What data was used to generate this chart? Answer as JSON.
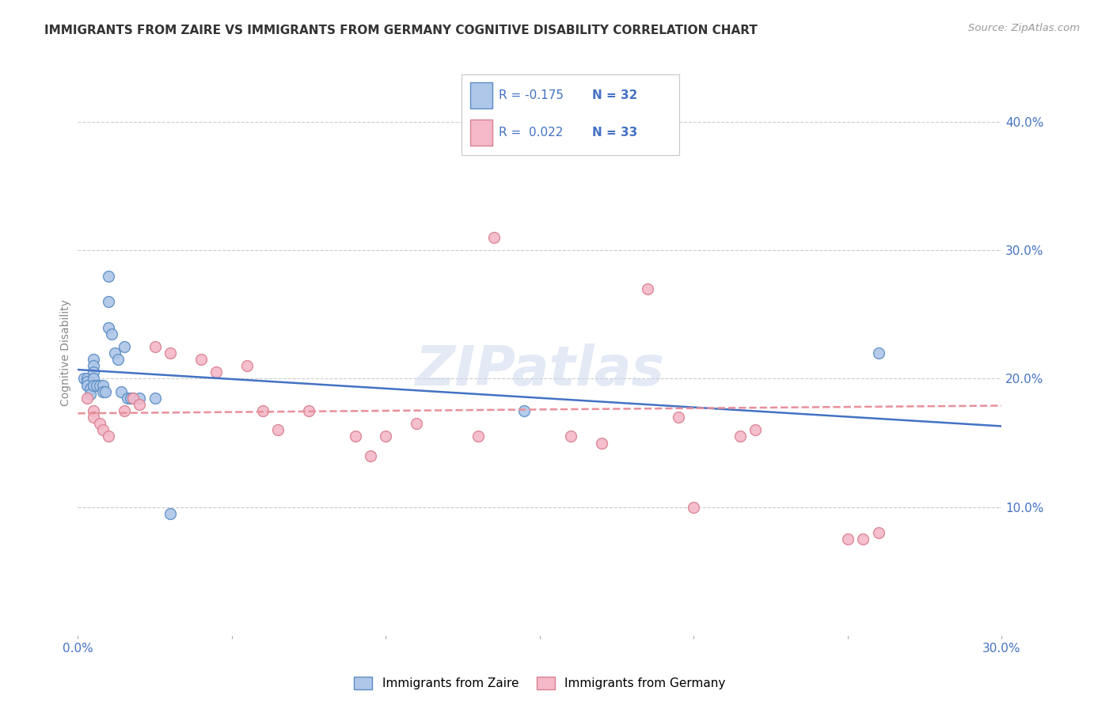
{
  "title": "IMMIGRANTS FROM ZAIRE VS IMMIGRANTS FROM GERMANY COGNITIVE DISABILITY CORRELATION CHART",
  "source": "Source: ZipAtlas.com",
  "ylabel": "Cognitive Disability",
  "xlim": [
    0.0,
    0.3
  ],
  "ylim": [
    0.0,
    0.44
  ],
  "zaire_color": "#aec6e8",
  "germany_color": "#f4b8c8",
  "zaire_edge_color": "#5b8ec4",
  "germany_edge_color": "#d98090",
  "zaire_line_color": "#4472c4",
  "germany_line_color": "#e8909a",
  "tick_color": "#4472c4",
  "background_color": "#ffffff",
  "grid_color": "#cccccc",
  "text_color": "#333333",
  "source_color": "#999999",
  "zaire_x": [
    0.002,
    0.003,
    0.003,
    0.003,
    0.004,
    0.004,
    0.005,
    0.005,
    0.005,
    0.005,
    0.005,
    0.006,
    0.007,
    0.008,
    0.008,
    0.009,
    0.01,
    0.01,
    0.01,
    0.011,
    0.012,
    0.013,
    0.014,
    0.015,
    0.016,
    0.017,
    0.018,
    0.02,
    0.025,
    0.03,
    0.145,
    0.26
  ],
  "zaire_y": [
    0.2,
    0.2,
    0.198,
    0.195,
    0.192,
    0.188,
    0.215,
    0.21,
    0.205,
    0.2,
    0.195,
    0.195,
    0.195,
    0.195,
    0.19,
    0.19,
    0.24,
    0.26,
    0.28,
    0.235,
    0.22,
    0.215,
    0.19,
    0.225,
    0.185,
    0.185,
    0.185,
    0.185,
    0.185,
    0.095,
    0.175,
    0.22
  ],
  "germany_x": [
    0.003,
    0.005,
    0.005,
    0.007,
    0.008,
    0.01,
    0.015,
    0.018,
    0.02,
    0.025,
    0.03,
    0.04,
    0.045,
    0.055,
    0.06,
    0.065,
    0.075,
    0.09,
    0.095,
    0.1,
    0.11,
    0.13,
    0.135,
    0.16,
    0.17,
    0.185,
    0.195,
    0.2,
    0.215,
    0.22,
    0.25,
    0.255,
    0.26
  ],
  "germany_y": [
    0.185,
    0.175,
    0.17,
    0.165,
    0.16,
    0.155,
    0.175,
    0.185,
    0.18,
    0.225,
    0.22,
    0.215,
    0.205,
    0.21,
    0.175,
    0.16,
    0.175,
    0.155,
    0.14,
    0.155,
    0.165,
    0.155,
    0.31,
    0.155,
    0.15,
    0.27,
    0.17,
    0.1,
    0.155,
    0.16,
    0.075,
    0.075,
    0.08
  ],
  "zaire_trend_x": [
    0.0,
    0.3
  ],
  "zaire_trend_y": [
    0.207,
    0.163
  ],
  "germany_trend_x": [
    0.0,
    0.3
  ],
  "germany_trend_y": [
    0.173,
    0.179
  ],
  "marker_size": 100
}
